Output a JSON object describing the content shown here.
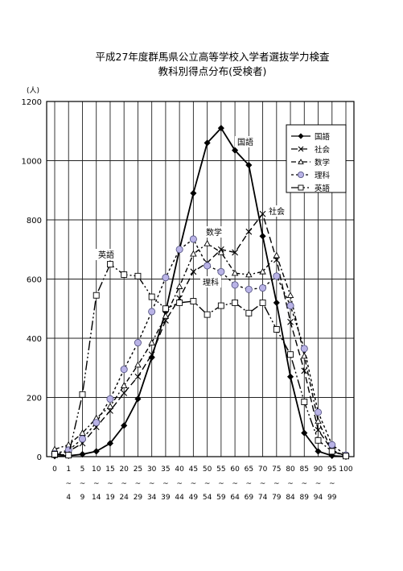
{
  "chart_data": {
    "type": "line",
    "title": "平成27年度群馬県公立高等学校入学者選抜学力検査",
    "subtitle": "教科別得点分布(受検者)",
    "ylabel": "(人)",
    "ylim": [
      0,
      1200
    ],
    "yticks": [
      0,
      200,
      400,
      600,
      800,
      1000,
      1200
    ],
    "grid": true,
    "legend_position": "top-right",
    "x_top_labels": [
      "0",
      "1",
      "5",
      "10",
      "15",
      "20",
      "25",
      "30",
      "35",
      "40",
      "45",
      "50",
      "55",
      "60",
      "65",
      "70",
      "75",
      "80",
      "85",
      "90",
      "95",
      "100"
    ],
    "x_mid_labels": [
      "",
      "~",
      "~",
      "~",
      "~",
      "~",
      "~",
      "~",
      "~",
      "~",
      "~",
      "~",
      "~",
      "~",
      "~",
      "~",
      "~",
      "~",
      "~",
      "~",
      "~",
      ""
    ],
    "x_bottom_labels": [
      "",
      "4",
      "9",
      "14",
      "19",
      "24",
      "29",
      "34",
      "39",
      "44",
      "49",
      "54",
      "59",
      "64",
      "69",
      "74",
      "79",
      "84",
      "89",
      "94",
      "99",
      ""
    ],
    "series": [
      {
        "name": "国語",
        "marker": "diamond",
        "dash": "none",
        "values": [
          2,
          3,
          8,
          18,
          45,
          105,
          195,
          335,
          490,
          700,
          890,
          1060,
          1110,
          1035,
          985,
          745,
          520,
          270,
          80,
          18,
          3,
          0
        ]
      },
      {
        "name": "社会",
        "marker": "x",
        "dash": "8 4",
        "values": [
          5,
          18,
          45,
          100,
          155,
          215,
          270,
          345,
          460,
          535,
          625,
          655,
          700,
          690,
          760,
          820,
          665,
          455,
          290,
          90,
          22,
          2
        ]
      },
      {
        "name": "数学",
        "marker": "triangle",
        "dash": "6 3 2 3",
        "values": [
          25,
          40,
          80,
          130,
          170,
          240,
          310,
          385,
          475,
          575,
          685,
          720,
          690,
          620,
          615,
          625,
          680,
          545,
          340,
          120,
          20,
          3
        ]
      },
      {
        "name": "理科",
        "marker": "circle",
        "dash": "3 3",
        "values": [
          10,
          22,
          60,
          115,
          195,
          295,
          385,
          490,
          605,
          700,
          735,
          645,
          625,
          580,
          565,
          570,
          610,
          510,
          365,
          150,
          40,
          5
        ]
      },
      {
        "name": "英語",
        "marker": "square",
        "dash": "12 3 2 3 2 3",
        "values": [
          8,
          5,
          210,
          545,
          650,
          615,
          610,
          540,
          500,
          520,
          525,
          480,
          510,
          520,
          485,
          520,
          430,
          345,
          185,
          55,
          18,
          2
        ]
      }
    ],
    "annotations": [
      "国語",
      "社会",
      "数学",
      "理科",
      "英語"
    ]
  }
}
